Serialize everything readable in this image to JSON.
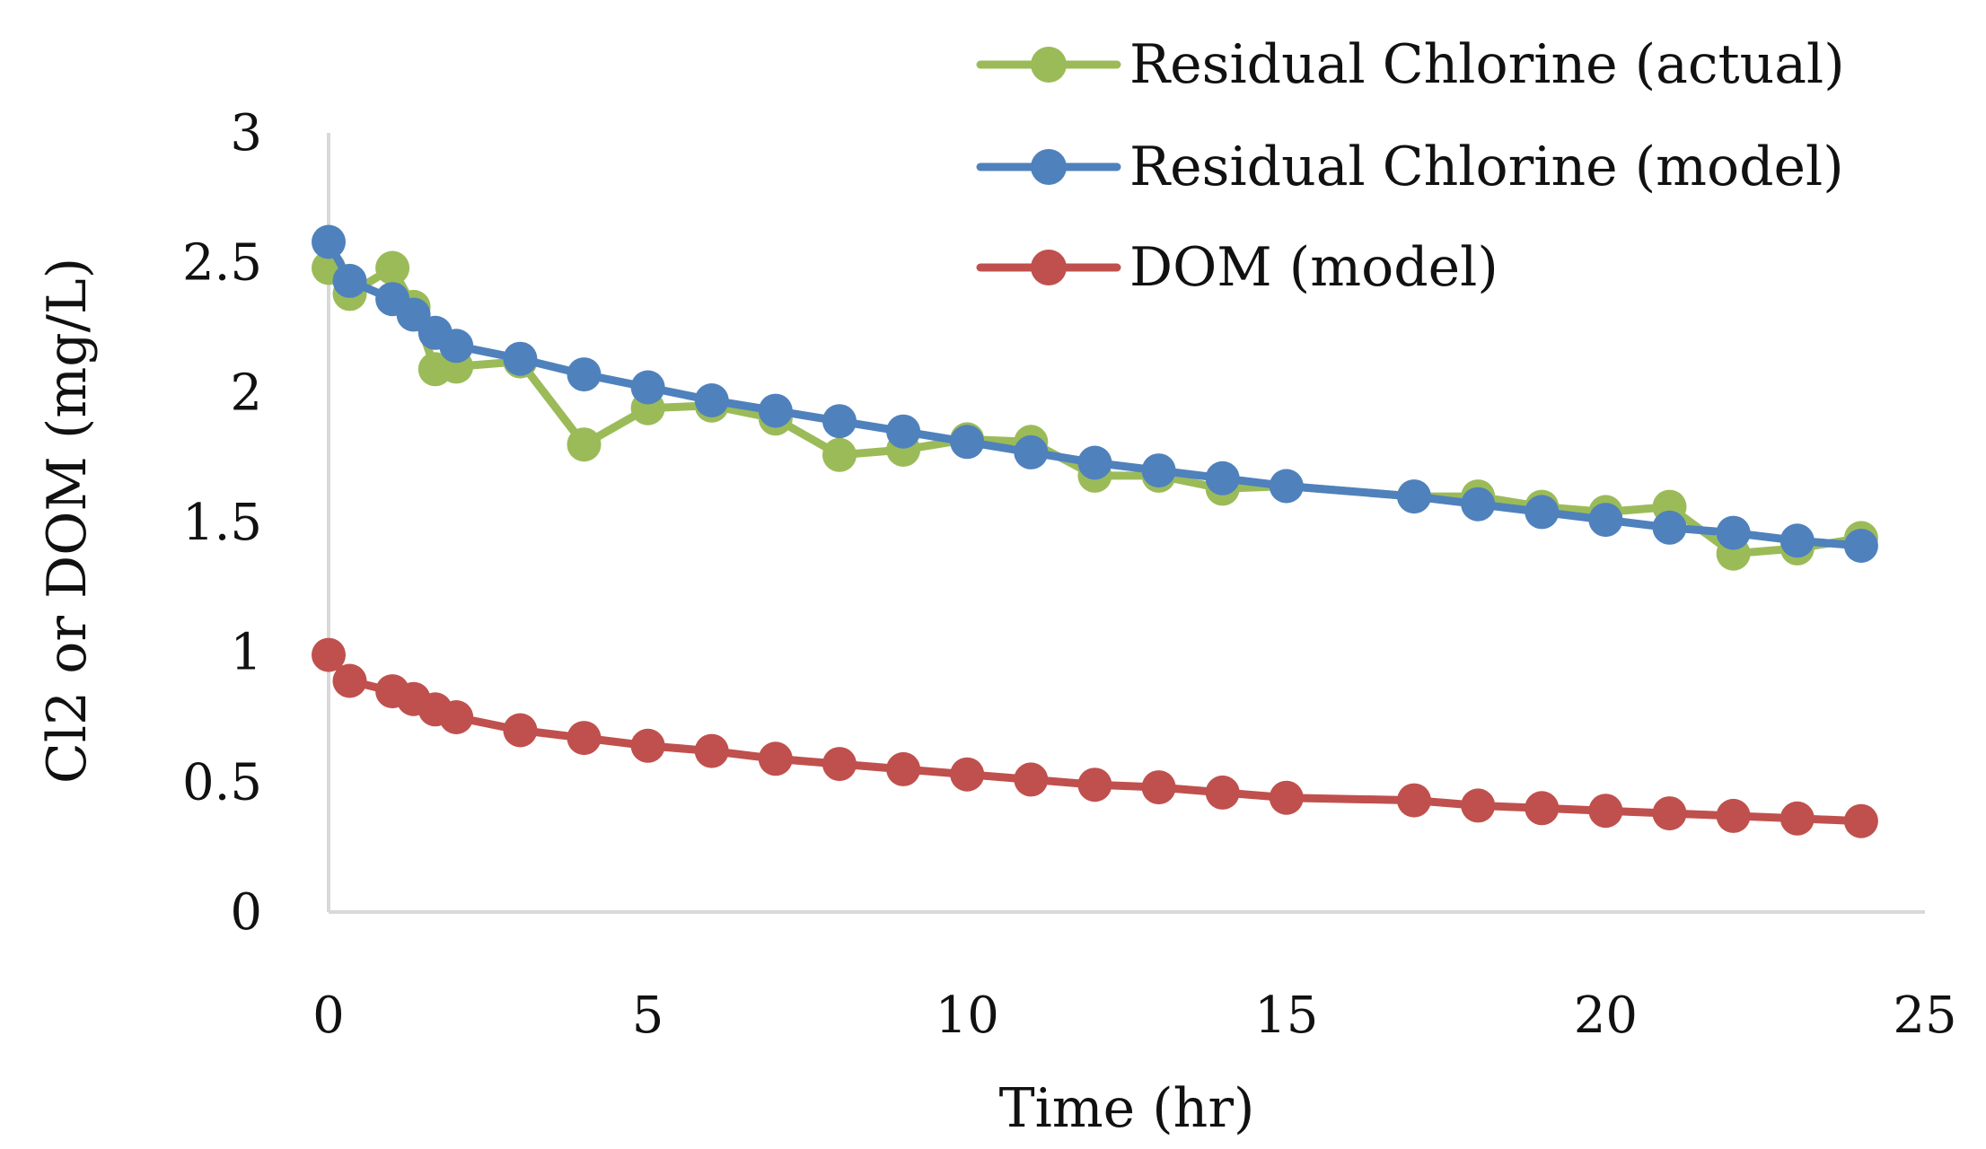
{
  "chart_data": {
    "type": "line",
    "title": "",
    "xlabel": "Time (hr)",
    "ylabel": "Cl2 or DOM (mg/L)",
    "xlim": [
      0,
      25
    ],
    "ylim": [
      0,
      3
    ],
    "xticks": [
      0,
      5,
      10,
      15,
      20,
      25
    ],
    "yticks": [
      0,
      0.5,
      1,
      1.5,
      2,
      2.5,
      3
    ],
    "xtick_labels": [
      "0",
      "5",
      "10",
      "15",
      "20",
      "25"
    ],
    "ytick_labels": [
      "0",
      "0.5",
      "1",
      "1.5",
      "2",
      "2.5",
      "3"
    ],
    "grid": false,
    "legend_position": "top-right",
    "series": [
      {
        "name": "Residual Chlorine (actual)",
        "color": "#9BBB59",
        "x": [
          0,
          0.33,
          1,
          1.33,
          1.67,
          2,
          3,
          4,
          5,
          6,
          7,
          8,
          9,
          10,
          11,
          12,
          13,
          14,
          15,
          17,
          18,
          19,
          20,
          21,
          22,
          23,
          24
        ],
        "values": [
          2.48,
          2.38,
          2.48,
          2.33,
          2.09,
          2.1,
          2.12,
          1.8,
          1.94,
          1.95,
          1.9,
          1.76,
          1.78,
          1.82,
          1.81,
          1.68,
          1.68,
          1.63,
          1.64,
          1.6,
          1.6,
          1.56,
          1.54,
          1.56,
          1.38,
          1.4,
          1.44
        ]
      },
      {
        "name": "Residual Chlorine (model)",
        "color": "#4F81BD",
        "x": [
          0,
          0.33,
          1,
          1.33,
          1.67,
          2,
          3,
          4,
          5,
          6,
          7,
          8,
          9,
          10,
          11,
          12,
          13,
          14,
          15,
          17,
          18,
          19,
          20,
          21,
          22,
          23,
          24
        ],
        "values": [
          2.58,
          2.43,
          2.36,
          2.3,
          2.23,
          2.18,
          2.13,
          2.07,
          2.02,
          1.97,
          1.93,
          1.89,
          1.85,
          1.81,
          1.77,
          1.73,
          1.7,
          1.67,
          1.64,
          1.6,
          1.57,
          1.54,
          1.51,
          1.48,
          1.46,
          1.43,
          1.41
        ]
      },
      {
        "name": "DOM (model)",
        "color": "#C0504D",
        "x": [
          0,
          0.33,
          1,
          1.33,
          1.67,
          2,
          3,
          4,
          5,
          6,
          7,
          8,
          9,
          10,
          11,
          12,
          13,
          14,
          15,
          17,
          18,
          19,
          20,
          21,
          22,
          23,
          24
        ],
        "values": [
          0.99,
          0.89,
          0.85,
          0.82,
          0.78,
          0.75,
          0.7,
          0.67,
          0.64,
          0.62,
          0.59,
          0.57,
          0.55,
          0.53,
          0.51,
          0.49,
          0.48,
          0.46,
          0.44,
          0.43,
          0.41,
          0.4,
          0.39,
          0.38,
          0.37,
          0.36,
          0.35
        ]
      }
    ]
  }
}
